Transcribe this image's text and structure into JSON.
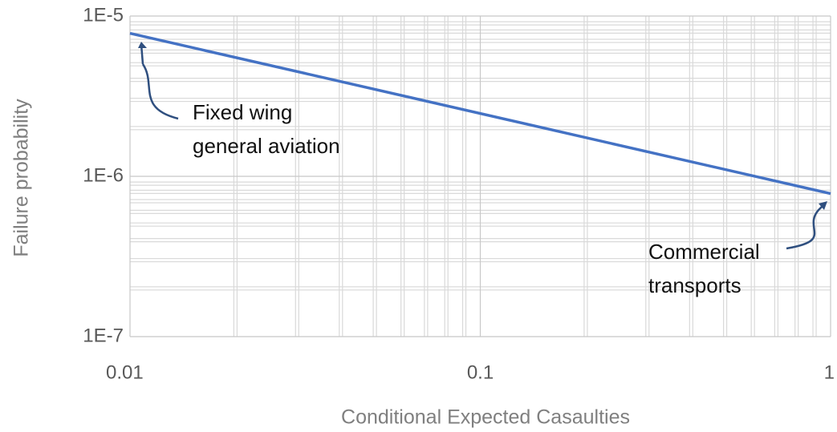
{
  "chart_data": {
    "type": "line",
    "xlabel": "Conditional Expected Casaulties",
    "ylabel": "Failure probability",
    "x": [
      0.01,
      1
    ],
    "series": [
      {
        "name": "Failure probability",
        "color": "#4472c4",
        "values": [
          7.8e-06,
          7.8e-07
        ]
      }
    ],
    "xscale": "log",
    "yscale": "log",
    "xlim": [
      0.01,
      1
    ],
    "ylim": [
      1e-07,
      1e-05
    ],
    "xticks": [
      0.01,
      0.1,
      1
    ],
    "yticks": [
      {
        "value": 1e-07,
        "label": "1E-7"
      },
      {
        "value": 1e-06,
        "label": "1E-6"
      },
      {
        "value": 1e-05,
        "label": "1E-5"
      }
    ],
    "grid": true,
    "annotations": [
      {
        "lines": [
          "Fixed wing",
          "general aviation"
        ]
      },
      {
        "lines": [
          "Commercial",
          "transports"
        ]
      }
    ]
  }
}
